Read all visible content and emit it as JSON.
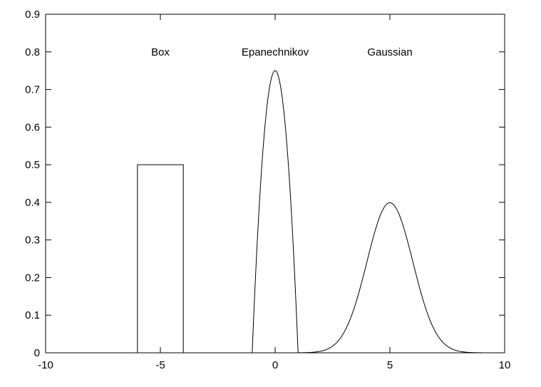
{
  "chart_data": {
    "type": "line",
    "title": "",
    "xlabel": "",
    "ylabel": "",
    "xlim": [
      -10,
      10
    ],
    "ylim": [
      0,
      0.9
    ],
    "grid": false,
    "x_ticks": [
      -10,
      -5,
      0,
      5,
      10
    ],
    "x_tick_labels": [
      "-10",
      "-5",
      "0",
      "5",
      "10"
    ],
    "y_ticks": [
      0,
      0.1,
      0.2,
      0.3,
      0.4,
      0.5,
      0.6,
      0.7,
      0.8,
      0.9
    ],
    "y_tick_labels": [
      "0",
      "0.1",
      "0.2",
      "0.3",
      "0.4",
      "0.5",
      "0.6",
      "0.7",
      "0.8",
      "0.9"
    ],
    "series": [
      {
        "name": "Box",
        "kernel": "box",
        "center": -5,
        "half_width": 1,
        "peak": 0.5,
        "x": [
          -10,
          -6,
          -6,
          -4,
          -4,
          10
        ],
        "y": [
          0,
          0,
          0.5,
          0.5,
          0,
          0
        ]
      },
      {
        "name": "Epanechnikov",
        "kernel": "epanechnikov",
        "center": 0,
        "half_width": 1,
        "peak": 0.75,
        "x": [
          -1,
          -0.75,
          -0.5,
          -0.25,
          0,
          0.25,
          0.5,
          0.75,
          1
        ],
        "y": [
          0,
          0.328,
          0.5625,
          0.703,
          0.75,
          0.703,
          0.5625,
          0.328,
          0
        ]
      },
      {
        "name": "Gaussian",
        "kernel": "gaussian",
        "center": 5,
        "sigma": 1,
        "peak": 0.399,
        "x": [
          0,
          2,
          3,
          4,
          5,
          6,
          7,
          8,
          10
        ],
        "y": [
          0,
          0.004,
          0.054,
          0.242,
          0.399,
          0.242,
          0.054,
          0.004,
          0
        ]
      }
    ],
    "annotations": [
      {
        "text": "Box",
        "x": -5,
        "y": 0.79
      },
      {
        "text": "Epanechnikov",
        "x": 0,
        "y": 0.79
      },
      {
        "text": "Gaussian",
        "x": 5,
        "y": 0.79
      }
    ]
  }
}
